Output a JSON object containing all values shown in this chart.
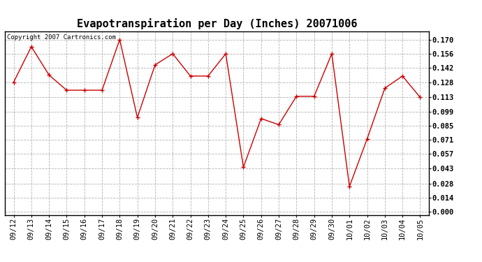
{
  "title": "Evapotranspiration per Day (Inches) 20071006",
  "copyright_text": "Copyright 2007 Cartronics.com",
  "x_labels": [
    "09/12",
    "09/13",
    "09/14",
    "09/15",
    "09/16",
    "09/17",
    "09/18",
    "09/19",
    "09/20",
    "09/21",
    "09/22",
    "09/23",
    "09/24",
    "09/25",
    "09/26",
    "09/27",
    "09/28",
    "09/29",
    "09/30",
    "10/01",
    "10/02",
    "10/03",
    "10/04",
    "10/05"
  ],
  "y_values": [
    0.128,
    0.163,
    0.135,
    0.12,
    0.12,
    0.12,
    0.17,
    0.093,
    0.145,
    0.156,
    0.134,
    0.134,
    0.156,
    0.044,
    0.092,
    0.086,
    0.114,
    0.114,
    0.156,
    0.025,
    0.072,
    0.122,
    0.134,
    0.113
  ],
  "y_ticks": [
    0.0,
    0.014,
    0.028,
    0.043,
    0.057,
    0.071,
    0.085,
    0.099,
    0.113,
    0.128,
    0.142,
    0.156,
    0.17
  ],
  "line_color": "#cc0000",
  "marker": "+",
  "marker_size": 5,
  "background_color": "#ffffff",
  "grid_color": "#aaaaaa",
  "title_fontsize": 11,
  "tick_fontsize": 7.5,
  "copyright_fontsize": 6.5
}
